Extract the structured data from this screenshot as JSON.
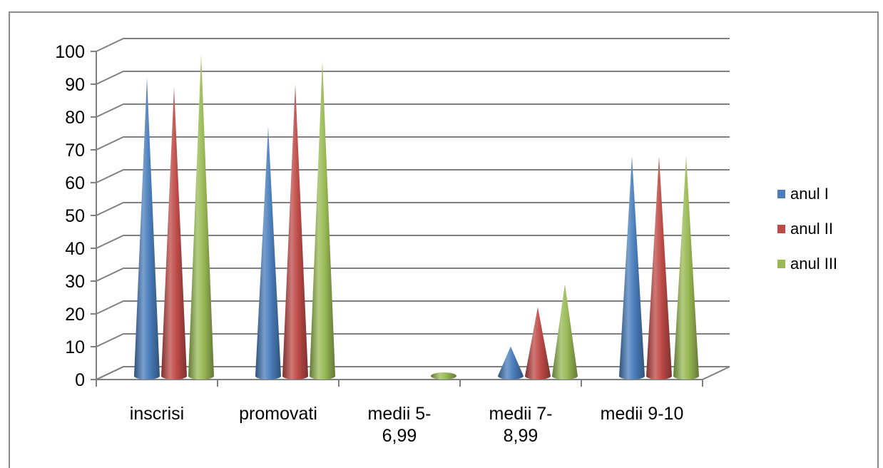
{
  "chart_data": {
    "type": "bar",
    "shape": "cone",
    "categories": [
      [
        "inscrisi"
      ],
      [
        "promovati"
      ],
      [
        "medii 5-",
        "6,99"
      ],
      [
        "medii 7-",
        "8,99"
      ],
      [
        "medii 9-10"
      ]
    ],
    "series": [
      {
        "name": "anul I",
        "color": "#4a7ebb",
        "values": [
          91,
          76,
          0,
          9,
          67
        ]
      },
      {
        "name": "anul II",
        "color": "#be4b48",
        "values": [
          88,
          89,
          0,
          21,
          67
        ]
      },
      {
        "name": "anul III",
        "color": "#98b954",
        "values": [
          98,
          96,
          1,
          28,
          67
        ]
      }
    ],
    "ylim": [
      0,
      100
    ],
    "yticks": [
      "0",
      "10",
      "20",
      "30",
      "40",
      "50",
      "60",
      "70",
      "80",
      "90",
      "100"
    ],
    "grid": true,
    "legend": "right"
  }
}
